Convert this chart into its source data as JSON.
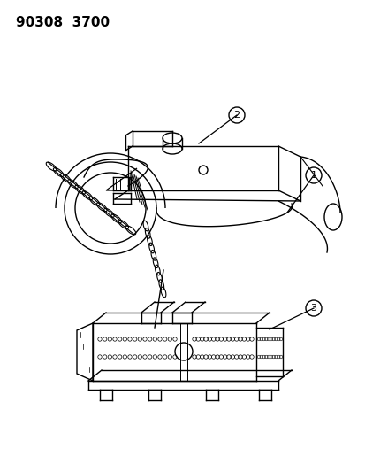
{
  "title_text": "90308  3700",
  "bg_color": "#ffffff",
  "line_color": "#000000",
  "label_1": "1",
  "label_2": "2",
  "label_3": "3"
}
